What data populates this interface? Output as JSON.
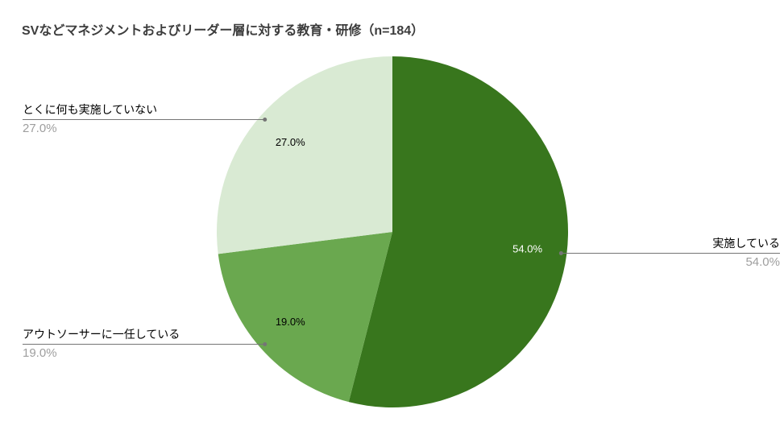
{
  "chart_data": {
    "type": "pie",
    "title": "SVなどマネジメントおよびリーダー層に対する教育・研修（n=184）",
    "sample_size_label": "n=184",
    "slices": [
      {
        "label": "実施している",
        "value": 54.0,
        "display": "54.0%",
        "color": "#38761d",
        "data_label_color": "#ffffff"
      },
      {
        "label": "アウトソーサーに一任している",
        "value": 19.0,
        "display": "19.0%",
        "color": "#6aa84f",
        "data_label_color": "#000000"
      },
      {
        "label": "とくに何も実施していない",
        "value": 27.0,
        "display": "27.0%",
        "color": "#d9ead3",
        "data_label_color": "#000000"
      }
    ],
    "start_angle_deg": 0,
    "direction": "clockwise",
    "legend_position": "outside-callouts",
    "styling": {
      "leader_line_color": "#757575",
      "callout_value_color": "#9e9e9e",
      "title_color": "#3c3c3c",
      "background": "#ffffff"
    }
  }
}
